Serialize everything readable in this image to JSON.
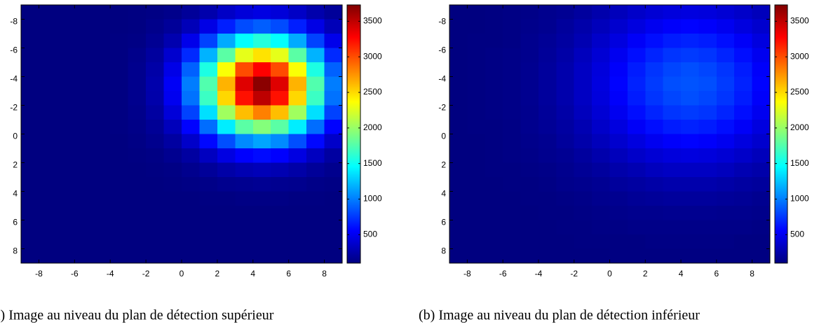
{
  "chart_data": [
    {
      "type": "heatmap",
      "caption": "(a) Image au niveau du plan de détection supérieur",
      "colormap": "jet",
      "y_reversed": true,
      "x": [
        -8.5,
        -7.5,
        -6.5,
        -5.5,
        -4.5,
        -3.5,
        -2.5,
        -1.5,
        -0.5,
        0.5,
        1.5,
        2.5,
        3.5,
        4.5,
        5.5,
        6.5,
        7.5,
        8.5
      ],
      "y": [
        -8.5,
        -7.5,
        -6.5,
        -5.5,
        -4.5,
        -3.5,
        -2.5,
        -1.5,
        -0.5,
        0.5,
        1.5,
        2.5,
        3.5,
        4.5,
        5.5,
        6.5,
        7.5,
        8.5
      ],
      "xlim": [
        -9,
        9
      ],
      "ylim": [
        -9,
        9
      ],
      "xticks": [
        -8,
        -6,
        -4,
        -2,
        0,
        2,
        4,
        6,
        8
      ],
      "yticks": [
        -8,
        -6,
        -4,
        -2,
        0,
        2,
        4,
        6,
        8
      ],
      "clim": [
        100,
        3730
      ],
      "cticks": [
        500,
        1000,
        1500,
        2000,
        2500,
        3000,
        3500
      ],
      "values": [
        [
          100,
          100,
          100,
          100,
          100,
          100,
          110,
          120,
          140,
          190,
          260,
          350,
          420,
          450,
          420,
          350,
          260,
          190
        ],
        [
          100,
          100,
          100,
          100,
          100,
          100,
          110,
          140,
          190,
          300,
          460,
          660,
          820,
          890,
          820,
          660,
          460,
          300
        ],
        [
          100,
          100,
          100,
          100,
          100,
          110,
          120,
          170,
          270,
          480,
          790,
          1160,
          1470,
          1590,
          1470,
          1160,
          790,
          480
        ],
        [
          100,
          100,
          100,
          100,
          100,
          110,
          140,
          210,
          380,
          700,
          1190,
          1780,
          2280,
          2470,
          2280,
          1780,
          1190,
          700
        ],
        [
          100,
          100,
          100,
          100,
          100,
          110,
          150,
          240,
          470,
          900,
          1560,
          2350,
          3010,
          3280,
          3010,
          2350,
          1560,
          900
        ],
        [
          100,
          100,
          100,
          100,
          100,
          110,
          150,
          260,
          520,
          1000,
          1750,
          2640,
          3390,
          3690,
          3390,
          2640,
          1750,
          1000
        ],
        [
          100,
          100,
          100,
          100,
          100,
          110,
          150,
          250,
          500,
          960,
          1670,
          2510,
          3220,
          3510,
          3220,
          2510,
          1670,
          960
        ],
        [
          100,
          100,
          100,
          100,
          100,
          110,
          140,
          220,
          420,
          790,
          1350,
          2030,
          2600,
          2820,
          2600,
          2030,
          1350,
          790
        ],
        [
          100,
          100,
          100,
          100,
          100,
          110,
          130,
          180,
          310,
          560,
          940,
          1400,
          1780,
          1930,
          1780,
          1400,
          940,
          560
        ],
        [
          100,
          100,
          100,
          100,
          100,
          100,
          120,
          150,
          220,
          360,
          580,
          830,
          1050,
          1140,
          1050,
          830,
          580,
          360
        ],
        [
          100,
          100,
          100,
          100,
          100,
          100,
          110,
          120,
          160,
          220,
          330,
          450,
          550,
          590,
          550,
          450,
          330,
          220
        ],
        [
          100,
          100,
          100,
          100,
          100,
          100,
          100,
          110,
          120,
          150,
          190,
          240,
          280,
          300,
          280,
          240,
          190,
          150
        ],
        [
          100,
          100,
          100,
          100,
          100,
          100,
          100,
          100,
          110,
          120,
          130,
          150,
          160,
          170,
          160,
          150,
          130,
          120
        ],
        [
          100,
          100,
          100,
          100,
          100,
          100,
          100,
          100,
          100,
          100,
          110,
          110,
          120,
          120,
          120,
          110,
          110,
          100
        ],
        [
          100,
          100,
          100,
          100,
          100,
          100,
          100,
          100,
          100,
          100,
          100,
          100,
          100,
          100,
          100,
          100,
          100,
          100
        ],
        [
          100,
          100,
          100,
          100,
          100,
          100,
          100,
          100,
          100,
          100,
          100,
          100,
          100,
          100,
          100,
          100,
          100,
          100
        ],
        [
          100,
          100,
          100,
          100,
          100,
          100,
          100,
          100,
          100,
          100,
          100,
          100,
          100,
          100,
          100,
          100,
          100,
          100
        ],
        [
          100,
          100,
          100,
          100,
          100,
          100,
          100,
          100,
          100,
          100,
          100,
          100,
          100,
          100,
          100,
          100,
          100,
          100
        ]
      ]
    },
    {
      "type": "heatmap",
      "caption": "(b) Image au niveau du plan de détection inférieur",
      "colormap": "jet",
      "y_reversed": true,
      "x": [
        -8.5,
        -7.5,
        -6.5,
        -5.5,
        -4.5,
        -3.5,
        -2.5,
        -1.5,
        -0.5,
        0.5,
        1.5,
        2.5,
        3.5,
        4.5,
        5.5,
        6.5,
        7.5,
        8.5
      ],
      "y": [
        -8.5,
        -7.5,
        -6.5,
        -5.5,
        -4.5,
        -3.5,
        -2.5,
        -1.5,
        -0.5,
        0.5,
        1.5,
        2.5,
        3.5,
        4.5,
        5.5,
        6.5,
        7.5,
        8.5
      ],
      "xlim": [
        -9,
        9
      ],
      "ylim": [
        -9,
        9
      ],
      "xticks": [
        -8,
        -6,
        -4,
        -2,
        0,
        2,
        4,
        6,
        8
      ],
      "yticks": [
        -8,
        -6,
        -4,
        -2,
        0,
        2,
        4,
        6,
        8
      ],
      "clim": [
        100,
        3730
      ],
      "cticks": [
        500,
        1000,
        1500,
        2000,
        2500,
        3000,
        3500
      ],
      "values": [
        [
          100,
          100,
          110,
          120,
          130,
          150,
          170,
          210,
          260,
          310,
          360,
          400,
          430,
          440,
          430,
          400,
          360,
          310
        ],
        [
          100,
          100,
          110,
          120,
          140,
          160,
          200,
          250,
          310,
          380,
          440,
          500,
          540,
          560,
          540,
          500,
          440,
          380
        ],
        [
          100,
          110,
          110,
          120,
          150,
          180,
          220,
          280,
          360,
          440,
          530,
          600,
          650,
          670,
          650,
          600,
          530,
          440
        ],
        [
          100,
          110,
          120,
          130,
          150,
          190,
          240,
          320,
          400,
          500,
          600,
          680,
          740,
          760,
          740,
          680,
          600,
          500
        ],
        [
          100,
          110,
          120,
          130,
          160,
          200,
          260,
          340,
          430,
          540,
          650,
          740,
          800,
          830,
          800,
          740,
          650,
          540
        ],
        [
          100,
          110,
          120,
          130,
          160,
          200,
          260,
          340,
          440,
          560,
          670,
          760,
          830,
          850,
          830,
          760,
          670,
          560
        ],
        [
          100,
          110,
          120,
          130,
          160,
          200,
          260,
          340,
          430,
          540,
          650,
          740,
          800,
          830,
          800,
          740,
          650,
          540
        ],
        [
          100,
          110,
          120,
          130,
          150,
          190,
          240,
          320,
          400,
          500,
          600,
          680,
          740,
          760,
          740,
          680,
          600,
          500
        ],
        [
          100,
          110,
          110,
          120,
          150,
          180,
          220,
          280,
          360,
          440,
          530,
          600,
          650,
          670,
          650,
          600,
          530,
          440
        ],
        [
          100,
          100,
          110,
          120,
          140,
          160,
          200,
          250,
          310,
          380,
          440,
          500,
          540,
          560,
          540,
          500,
          440,
          380
        ],
        [
          100,
          100,
          110,
          120,
          130,
          150,
          170,
          210,
          260,
          310,
          360,
          400,
          430,
          440,
          430,
          400,
          360,
          310
        ],
        [
          100,
          100,
          110,
          110,
          120,
          130,
          150,
          180,
          210,
          250,
          280,
          320,
          340,
          340,
          340,
          320,
          280,
          250
        ],
        [
          100,
          100,
          100,
          110,
          110,
          120,
          140,
          150,
          170,
          200,
          220,
          240,
          260,
          260,
          260,
          240,
          220,
          200
        ],
        [
          100,
          100,
          100,
          100,
          110,
          110,
          120,
          130,
          150,
          160,
          180,
          190,
          200,
          200,
          200,
          190,
          180,
          160
        ],
        [
          100,
          100,
          100,
          100,
          100,
          110,
          110,
          120,
          130,
          140,
          150,
          150,
          160,
          160,
          160,
          150,
          150,
          140
        ],
        [
          100,
          100,
          100,
          100,
          100,
          100,
          110,
          110,
          120,
          120,
          130,
          130,
          130,
          130,
          130,
          130,
          130,
          120
        ],
        [
          100,
          100,
          100,
          100,
          100,
          100,
          100,
          110,
          110,
          110,
          110,
          120,
          120,
          120,
          120,
          120,
          110,
          110
        ],
        [
          100,
          100,
          100,
          100,
          100,
          100,
          100,
          100,
          100,
          110,
          110,
          110,
          110,
          110,
          110,
          110,
          110,
          110
        ]
      ]
    }
  ]
}
